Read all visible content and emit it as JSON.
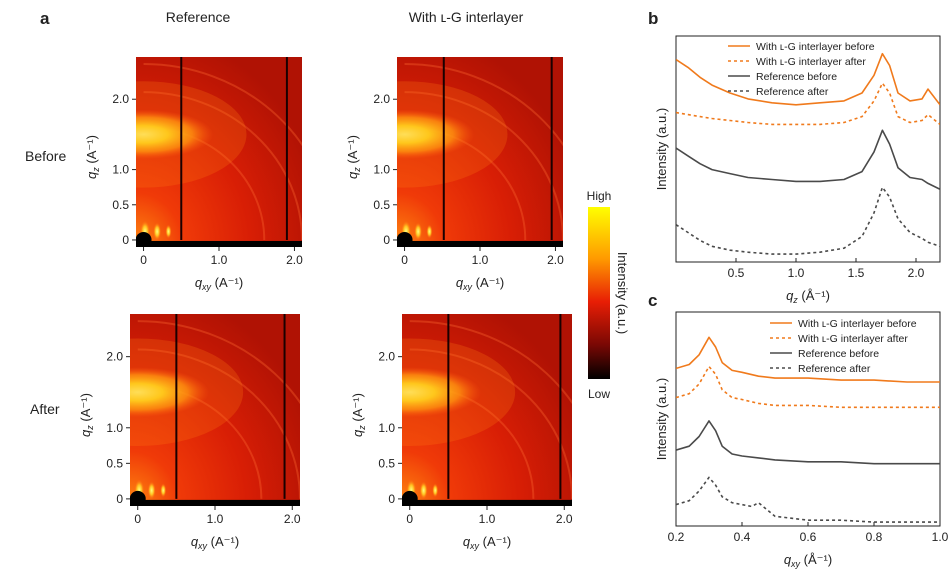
{
  "panel_letters": {
    "a": "a",
    "b": "b",
    "c": "c"
  },
  "colors": {
    "orange": "#f07a1c",
    "gray": "#4a4a4a",
    "map_low": "#000000",
    "map_mid": "#d81e05",
    "map_high": "#ffff00"
  },
  "chart_data": [
    {
      "id": "giwaxs_maps",
      "type": "heatmap",
      "column_labels": [
        "Reference",
        "With ʟ-G interlayer"
      ],
      "row_labels": [
        "Before",
        "After"
      ],
      "xlabel_main": "q",
      "xlabel_sub": "xy",
      "xlabel_unit": " (A⁻¹)",
      "ylabel_main": "q",
      "ylabel_sub": "z",
      "ylabel_unit": " (A⁻¹)",
      "x_ticks": [
        "0",
        "1.0",
        "2.0"
      ],
      "y_ticks": [
        "0",
        "0.5",
        "1.0",
        "2.0"
      ],
      "xlim": [
        -0.1,
        2.1
      ],
      "ylim": [
        -0.1,
        2.6
      ],
      "x_tick_values": [
        0,
        1.0,
        2.0
      ],
      "y_tick_values": [
        0,
        0.5,
        1.0,
        2.0
      ],
      "features": [
        {
          "name": "bright lobe",
          "q": 1.5,
          "note": "broad arc near qz 1.5"
        },
        {
          "name": "low-q peaks",
          "q": 0.3
        }
      ],
      "colorbar": {
        "title": "Intensity (a.u.)",
        "high_label": "High",
        "low_label": "Low"
      }
    },
    {
      "id": "b",
      "type": "line",
      "xlabel_main": "q",
      "xlabel_sub": "z",
      "xlabel_unit": " (Å⁻¹)",
      "ylabel": "Intensity (a.u.)",
      "xlim": [
        0,
        2.2
      ],
      "ylim": [
        0,
        1.15
      ],
      "x_ticks": [
        "0.5",
        "1.0",
        "1.5",
        "2.0"
      ],
      "x_tick_values": [
        0.5,
        1.0,
        1.5,
        2.0
      ],
      "legend": [
        "With ʟ-G interlayer before",
        "With ʟ-G interlayer after",
        "Reference before",
        "Reference after"
      ],
      "series": [
        {
          "name": "With ʟ-G interlayer before",
          "style": "solid",
          "color": "orange",
          "x": [
            0.0,
            0.1,
            0.2,
            0.3,
            0.45,
            0.6,
            0.8,
            1.0,
            1.2,
            1.4,
            1.55,
            1.65,
            1.72,
            1.78,
            1.85,
            1.95,
            2.05,
            2.1,
            2.2
          ],
          "y": [
            1.03,
            0.99,
            0.94,
            0.9,
            0.86,
            0.83,
            0.81,
            0.8,
            0.81,
            0.82,
            0.86,
            0.95,
            1.06,
            1.0,
            0.86,
            0.82,
            0.83,
            0.88,
            0.8
          ]
        },
        {
          "name": "With ʟ-G interlayer after",
          "style": "dashed",
          "color": "orange",
          "x": [
            0.0,
            0.1,
            0.2,
            0.3,
            0.45,
            0.6,
            0.8,
            1.0,
            1.2,
            1.4,
            1.55,
            1.65,
            1.72,
            1.78,
            1.85,
            1.95,
            2.05,
            2.1,
            2.2
          ],
          "y": [
            0.76,
            0.75,
            0.74,
            0.73,
            0.72,
            0.71,
            0.7,
            0.7,
            0.7,
            0.71,
            0.74,
            0.82,
            0.91,
            0.86,
            0.74,
            0.71,
            0.72,
            0.75,
            0.7
          ]
        },
        {
          "name": "Reference before",
          "style": "solid",
          "color": "gray",
          "x": [
            0.0,
            0.1,
            0.2,
            0.3,
            0.45,
            0.6,
            0.8,
            1.0,
            1.2,
            1.4,
            1.55,
            1.65,
            1.72,
            1.78,
            1.85,
            1.95,
            2.05,
            2.1,
            2.2
          ],
          "y": [
            0.58,
            0.54,
            0.5,
            0.47,
            0.45,
            0.43,
            0.42,
            0.41,
            0.41,
            0.42,
            0.46,
            0.56,
            0.67,
            0.6,
            0.48,
            0.43,
            0.42,
            0.4,
            0.37
          ]
        },
        {
          "name": "Reference after",
          "style": "dashed",
          "color": "gray",
          "x": [
            0.0,
            0.1,
            0.2,
            0.3,
            0.45,
            0.6,
            0.8,
            1.0,
            1.2,
            1.4,
            1.55,
            1.65,
            1.72,
            1.78,
            1.85,
            1.95,
            2.05,
            2.1,
            2.2
          ],
          "y": [
            0.19,
            0.15,
            0.11,
            0.08,
            0.06,
            0.05,
            0.04,
            0.04,
            0.05,
            0.07,
            0.13,
            0.25,
            0.38,
            0.33,
            0.22,
            0.15,
            0.12,
            0.1,
            0.08
          ]
        }
      ]
    },
    {
      "id": "c",
      "type": "line",
      "xlabel_main": "q",
      "xlabel_sub": "xy",
      "xlabel_unit": " (Å⁻¹)",
      "ylabel": "Intensity (a.u.)",
      "xlim": [
        0.2,
        1.0
      ],
      "ylim": [
        0,
        1.1
      ],
      "x_ticks": [
        "0.2",
        "0.4",
        "0.6",
        "0.8",
        "1.0"
      ],
      "x_tick_values": [
        0.2,
        0.4,
        0.6,
        0.8,
        1.0
      ],
      "legend": [
        "With ʟ-G interlayer before",
        "With ʟ-G interlayer after",
        "Reference before",
        "Reference after"
      ],
      "series": [
        {
          "name": "With ʟ-G interlayer before",
          "style": "solid",
          "color": "orange",
          "x": [
            0.2,
            0.24,
            0.27,
            0.3,
            0.32,
            0.34,
            0.37,
            0.4,
            0.45,
            0.5,
            0.6,
            0.7,
            0.8,
            0.9,
            1.0
          ],
          "y": [
            0.81,
            0.83,
            0.88,
            0.97,
            0.92,
            0.84,
            0.8,
            0.79,
            0.77,
            0.76,
            0.76,
            0.75,
            0.75,
            0.74,
            0.74
          ]
        },
        {
          "name": "With ʟ-G interlayer after",
          "style": "dashed",
          "color": "orange",
          "x": [
            0.2,
            0.24,
            0.27,
            0.3,
            0.32,
            0.34,
            0.37,
            0.4,
            0.45,
            0.5,
            0.6,
            0.7,
            0.8,
            0.9,
            1.0
          ],
          "y": [
            0.66,
            0.68,
            0.73,
            0.82,
            0.78,
            0.7,
            0.66,
            0.65,
            0.63,
            0.62,
            0.62,
            0.61,
            0.61,
            0.61,
            0.61
          ]
        },
        {
          "name": "Reference before",
          "style": "solid",
          "color": "gray",
          "x": [
            0.2,
            0.24,
            0.27,
            0.3,
            0.32,
            0.34,
            0.37,
            0.4,
            0.45,
            0.5,
            0.6,
            0.7,
            0.8,
            0.9,
            1.0
          ],
          "y": [
            0.39,
            0.41,
            0.46,
            0.54,
            0.49,
            0.41,
            0.37,
            0.36,
            0.35,
            0.34,
            0.33,
            0.33,
            0.32,
            0.32,
            0.32
          ]
        },
        {
          "name": "Reference after",
          "style": "dashed",
          "color": "gray",
          "x": [
            0.2,
            0.24,
            0.27,
            0.3,
            0.32,
            0.34,
            0.37,
            0.4,
            0.43,
            0.45,
            0.5,
            0.6,
            0.7,
            0.8,
            0.9,
            1.0
          ],
          "y": [
            0.11,
            0.13,
            0.18,
            0.25,
            0.21,
            0.15,
            0.12,
            0.11,
            0.1,
            0.12,
            0.05,
            0.03,
            0.03,
            0.02,
            0.02,
            0.02
          ]
        }
      ]
    }
  ]
}
